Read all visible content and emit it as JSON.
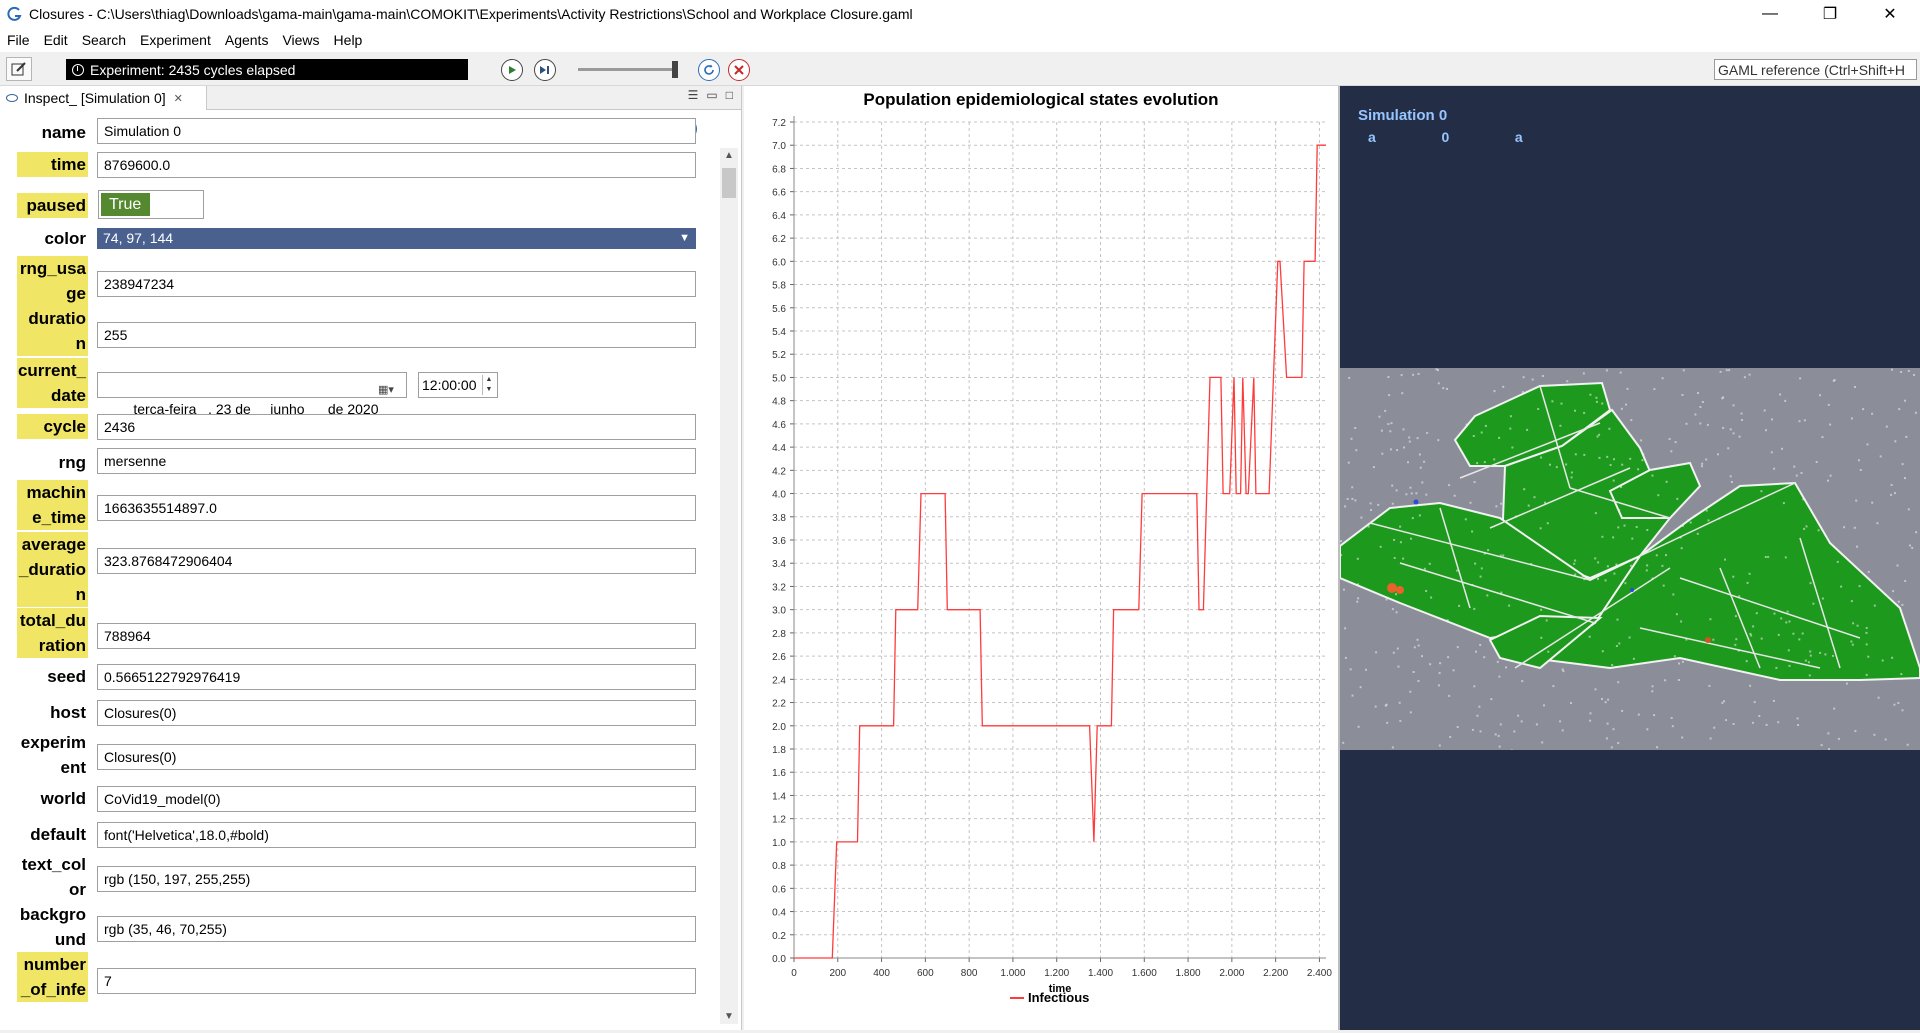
{
  "window": {
    "title": "Closures - C:\\Users\\thiag\\Downloads\\gama-main\\gama-main\\COMOKIT\\Experiments\\Activity Restrictions\\School and Workplace Closure.gaml",
    "minimize": "—",
    "maximize": "❐",
    "close": "✕"
  },
  "menu": [
    "File",
    "Edit",
    "Search",
    "Experiment",
    "Agents",
    "Views",
    "Help"
  ],
  "toolbar": {
    "status": "Experiment: 2435 cycles elapsed",
    "gaml_reference_placeholder": "GAML reference (Ctrl+Shift+H"
  },
  "inspector": {
    "tab_label": "Inspect_ [Simulation 0]",
    "attributes": {
      "name": {
        "label": "name",
        "value": "Simulation 0"
      },
      "time": {
        "label": "time",
        "value": "8769600.0"
      },
      "paused": {
        "label": "paused",
        "value": "True"
      },
      "color": {
        "label": "color",
        "value": "74, 97, 144"
      },
      "rng_usage": {
        "label": "rng_usa ge",
        "value": "238947234"
      },
      "duration": {
        "label": "duratio n",
        "value": "255"
      },
      "current_date": {
        "label": "current_ date",
        "date": "terça-feira   , 23 de     junho      de 2020",
        "time": "12:00:00"
      },
      "cycle": {
        "label": "cycle",
        "value": "2436"
      },
      "rng": {
        "label": "rng",
        "value": "mersenne"
      },
      "machine_time": {
        "label": "machin e_time",
        "value": "1663635514897.0"
      },
      "average_duration": {
        "label": "average _duratio n",
        "value": "323.8768472906404"
      },
      "total_duration": {
        "label": "total_du ration",
        "value": "788964"
      },
      "seed": {
        "label": "seed",
        "value": "0.5665122792976419"
      },
      "host": {
        "label": "host",
        "value": "Closures(0)"
      },
      "experiment": {
        "label": "experim ent",
        "value": "Closures(0)"
      },
      "world": {
        "label": "world",
        "value": "CoVid19_model(0)"
      },
      "default": {
        "label": "default",
        "value": "font('Helvetica',18.0,#bold)"
      },
      "text_color": {
        "label": "text_col or",
        "value": "rgb (150, 197, 255,255)"
      },
      "background": {
        "label": "backgro und",
        "value": "rgb (35, 46, 70,255)"
      },
      "number_of_infected": {
        "label": "number _of_infe",
        "value": "7"
      }
    }
  },
  "chart_data": {
    "type": "line",
    "title": "Population epidemiological states evolution",
    "xlabel": "time",
    "ylabel": "",
    "xlim": [
      0,
      2430
    ],
    "ylim": [
      0,
      7.2
    ],
    "x_ticks": [
      "0",
      "200",
      "400",
      "600",
      "800",
      "1.000",
      "1.200",
      "1.400",
      "1.600",
      "1.800",
      "2.000",
      "2.200",
      "2.400"
    ],
    "y_ticks": [
      "0.0",
      "0.2",
      "0.4",
      "0.6",
      "0.8",
      "1.0",
      "1.2",
      "1.4",
      "1.6",
      "1.8",
      "2.0",
      "2.2",
      "2.4",
      "2.6",
      "2.8",
      "3.0",
      "3.2",
      "3.4",
      "3.6",
      "3.8",
      "4.0",
      "4.2",
      "4.4",
      "4.6",
      "4.8",
      "5.0",
      "5.2",
      "5.4",
      "5.6",
      "5.8",
      "6.0",
      "6.2",
      "6.4",
      "6.6",
      "6.8",
      "7.0",
      "7.2"
    ],
    "legend_position": "bottom",
    "series": [
      {
        "name": "Infectious",
        "color": "#ff3b3b",
        "x": [
          0,
          175,
          195,
          290,
          300,
          455,
          465,
          565,
          580,
          690,
          700,
          850,
          860,
          1350,
          1370,
          1385,
          1450,
          1460,
          1575,
          1590,
          1720,
          1840,
          1850,
          1870,
          1900,
          1950,
          1960,
          1980,
          1990,
          2010,
          2020,
          2040,
          2050,
          2065,
          2075,
          2100,
          2110,
          2135,
          2170,
          2210,
          2220,
          2250,
          2260,
          2320,
          2330,
          2380,
          2390,
          2400,
          2410,
          2430
        ],
        "y": [
          0,
          0,
          1,
          1,
          2,
          2,
          3,
          3,
          4,
          4,
          3,
          3,
          2,
          2,
          1,
          2,
          2,
          3,
          3,
          4,
          4,
          4,
          3,
          3,
          5,
          5,
          4,
          4,
          4,
          5,
          4,
          4,
          5,
          4,
          4,
          5,
          4,
          4,
          4,
          6,
          6,
          5,
          5,
          5,
          6,
          6,
          7,
          7,
          7,
          7
        ]
      }
    ]
  },
  "map": {
    "title": "Simulation 0",
    "subtitle": "a   0   a",
    "background": "#232e46",
    "ground": "#8b8e99",
    "building": "#1e9c1e"
  }
}
